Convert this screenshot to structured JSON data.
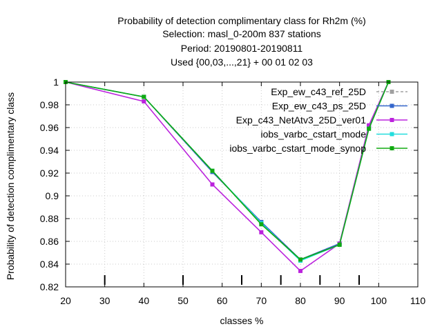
{
  "chart_data": {
    "type": "line",
    "title_lines": [
      "Probability of detection complimentary class  for Rh2m (%)",
      "Selection: masl_0-200m    837 stations",
      "Period: 20190801-20190811",
      "Used {00,03,...,21} + 00 01 02 03"
    ],
    "xlabel": "classes %",
    "ylabel": "Probability of detection complimentary class",
    "xlim": [
      20,
      110
    ],
    "ylim": [
      0.82,
      1.0
    ],
    "x_ticks": [
      "20",
      "30",
      "40",
      "50",
      "60",
      "70",
      "80",
      "90",
      "100",
      "110"
    ],
    "y_ticks": [
      "0.82",
      "0.84",
      "0.86",
      "0.88",
      "0.9",
      "0.92",
      "0.94",
      "0.96",
      "0.98",
      "1"
    ],
    "class_limit_marks": [
      30,
      50,
      65,
      75,
      85,
      95
    ],
    "grid": true,
    "legend_position": "top-right",
    "series": [
      {
        "name": "Exp_ew_c43_ref_25D",
        "color": "#a0a0a0",
        "dash": true,
        "x": [
          20,
          40,
          57.5,
          70,
          80,
          90,
          97.5,
          102.5
        ],
        "y": [
          1.0,
          0.987,
          0.921,
          0.877,
          0.844,
          0.858,
          0.961,
          1.0
        ]
      },
      {
        "name": "Exp_ew_c43_ps_25D",
        "color": "#3366cc",
        "dash": false,
        "x": [
          20,
          40,
          57.5,
          70,
          80,
          90,
          97.5,
          102.5
        ],
        "y": [
          1.0,
          0.987,
          0.921,
          0.877,
          0.844,
          0.858,
          0.961,
          1.0
        ]
      },
      {
        "name": "Exp_c43_NetAtv3_25D_ver01",
        "color": "#bb22dd",
        "dash": false,
        "x": [
          20,
          40,
          57.5,
          70,
          80,
          90,
          97.5,
          102.5
        ],
        "y": [
          1.0,
          0.983,
          0.91,
          0.868,
          0.834,
          0.858,
          0.962,
          1.0
        ]
      },
      {
        "name": "iobs_varbc_cstart_mode",
        "color": "#22dddd",
        "dash": false,
        "x": [
          20,
          40,
          57.5,
          70,
          80,
          90,
          97.5,
          102.5
        ],
        "y": [
          1.0,
          0.987,
          0.922,
          0.876,
          0.843,
          0.857,
          0.959,
          1.0
        ]
      },
      {
        "name": "iobs_varbc_cstart_mode_synop",
        "color": "#11aa11",
        "dash": false,
        "x": [
          20,
          40,
          57.5,
          70,
          80,
          90,
          97.5,
          102.5
        ],
        "y": [
          1.0,
          0.987,
          0.922,
          0.875,
          0.844,
          0.857,
          0.959,
          1.0
        ]
      }
    ]
  }
}
